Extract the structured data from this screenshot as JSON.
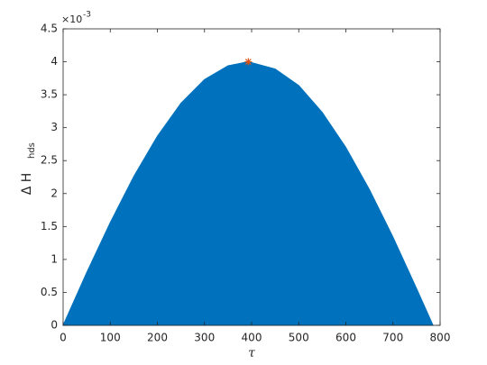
{
  "chart_data": {
    "type": "area",
    "x_label": "τ",
    "y_label": "Δ H",
    "y_label_sub": "hds",
    "y_exponent_base": "×10",
    "y_exponent": "-3",
    "x": [
      0,
      50,
      100,
      150,
      200,
      250,
      300,
      350,
      393,
      450,
      500,
      550,
      600,
      650,
      700,
      750,
      785
    ],
    "series": [
      {
        "color": "#0072bd",
        "values": [
          0,
          0.8,
          1.56,
          2.26,
          2.87,
          3.37,
          3.73,
          3.94,
          4.0,
          3.89,
          3.64,
          3.23,
          2.7,
          2.06,
          1.34,
          0.56,
          0
        ]
      }
    ],
    "marker": {
      "x": 393,
      "y": 4.0,
      "color": "#d95319"
    },
    "xlim": [
      0,
      800
    ],
    "xticks": [
      0,
      100,
      200,
      300,
      400,
      500,
      600,
      700,
      800
    ],
    "ylim": [
      0,
      4.5
    ],
    "yticks": [
      0,
      0.5,
      1,
      1.5,
      2,
      2.5,
      3,
      3.5,
      4,
      4.5
    ]
  }
}
